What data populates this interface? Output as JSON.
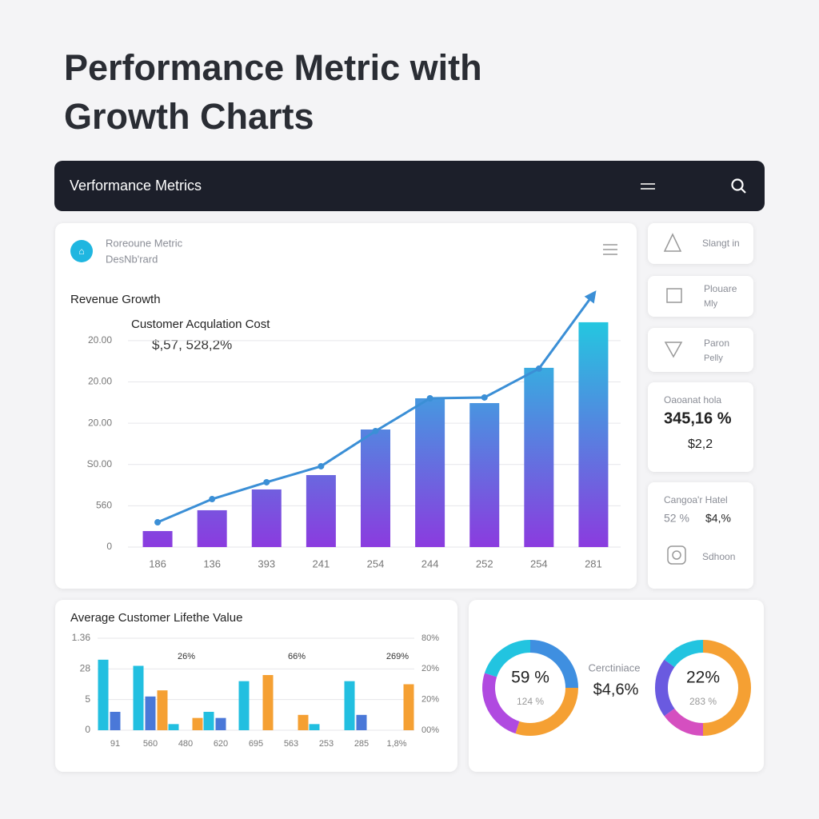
{
  "title_line1": "Performance Metric with",
  "title_line2": "Growth Charts",
  "navbar": {
    "title": "Verformance Metrics"
  },
  "main_card": {
    "heading_line1": "Roreoune Metric",
    "heading_line2": "DesNb'rard"
  },
  "side_cards": [
    {
      "label": "Slangt in"
    },
    {
      "label": "Plouare",
      "sublabel": "Mly"
    },
    {
      "label": "Paron",
      "sublabel": "Pelly"
    },
    {
      "label": "Oaoanat hola",
      "value": "345,16 %",
      "sub": "$2,2"
    },
    {
      "label": "Cangoa'r Hatel",
      "left": "52 %",
      "right": "$4,%",
      "footer": "Sdhoon"
    }
  ],
  "donut_panel": {
    "label": "Cerctiniace",
    "value": "$4,6%"
  },
  "chart_data": [
    {
      "type": "bar",
      "title": "Revenue Growth",
      "subtitle": "Customer Acqulation Cost",
      "annotation": "$,57, 528,2%",
      "categories": [
        "186",
        "136",
        "393",
        "241",
        "254",
        "244",
        "252",
        "254",
        "281"
      ],
      "series": [
        {
          "color": "#8b3bdf",
          "color_top": "#23c8e0",
          "values": [
            194,
            446,
            698,
            872,
            1424,
            1802,
            1744,
            2171,
            2723
          ]
        },
        {
          "type": "line",
          "color": "#3b8fd6",
          "values": [
            300,
            581,
            785,
            979,
            1405,
            1802,
            1812,
            2161,
            3062
          ]
        }
      ],
      "ylim": [
        0,
        3100
      ],
      "yticks": [
        0,
        {
          "value": 500,
          "label": "560"
        },
        {
          "value": 1000,
          "label": "S0.00"
        },
        {
          "value": 1500,
          "label": "20.00"
        },
        {
          "value": 2000,
          "label": "20.00"
        },
        {
          "value": 2500,
          "label": "20.00"
        }
      ],
      "grid": true
    },
    {
      "type": "bar",
      "title": "Average Customer Lifethe Value",
      "categories": [
        "91",
        "560",
        "480",
        "620",
        "695",
        "563",
        "253",
        "285",
        "1,8%"
      ],
      "series": [
        {
          "color": "#22bfe0",
          "values": [
            2.3,
            2.1,
            0.2,
            0.6,
            1.6,
            null,
            0.2,
            1.6,
            null
          ]
        },
        {
          "color": "#4a78d8",
          "values": [
            0.6,
            1.1,
            null,
            0.4,
            null,
            null,
            null,
            0.5,
            null
          ]
        },
        {
          "color": "#f5a033",
          "values": [
            null,
            1.3,
            0.4,
            null,
            1.8,
            0.5,
            null,
            null,
            1.5
          ]
        }
      ],
      "annotations": [
        "26%",
        "66%",
        "269%"
      ],
      "ylim": [
        0,
        3
      ],
      "yticks": [
        0,
        {
          "value": 1,
          "label": "5"
        },
        {
          "value": 2,
          "label": "28"
        },
        {
          "value": 3,
          "label": "1.36"
        }
      ],
      "y2lim": [
        0,
        3
      ],
      "y2ticks": [
        {
          "value": 0,
          "label": "00%"
        },
        {
          "value": 1,
          "label": "20%"
        },
        {
          "value": 2,
          "label": "20%"
        },
        {
          "value": 3,
          "label": "80%"
        }
      ],
      "grid": true
    },
    {
      "type": "donut",
      "center_label": "59 %",
      "center_sublabel": "124 %",
      "values": [
        25,
        30,
        25,
        20
      ],
      "colors": [
        "#3f8fe0",
        "#f5a033",
        "#b04ae0",
        "#22c4e0"
      ]
    },
    {
      "type": "donut",
      "center_label": "22%",
      "center_sublabel": "283 %",
      "values": [
        50,
        15,
        20,
        15
      ],
      "colors": [
        "#f5a033",
        "#d54fc0",
        "#6a5ae0",
        "#22c4e0"
      ]
    }
  ]
}
